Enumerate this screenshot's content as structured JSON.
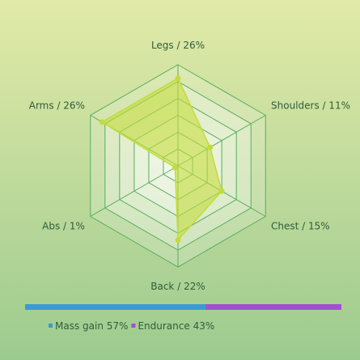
{
  "chart_data": [
    {
      "type": "radar",
      "categories": [
        "Legs",
        "Shoulders",
        "Chest",
        "Back",
        "Abs",
        "Arms"
      ],
      "values": [
        26,
        11,
        15,
        22,
        1,
        26
      ],
      "value_labels": [
        "26%",
        "11%",
        "15%",
        "22%",
        "1%",
        "26%"
      ],
      "color": "#c3dc3a",
      "rlim": [
        0,
        30
      ]
    },
    {
      "type": "stacked-bar",
      "series": [
        {
          "name": "Mass gain",
          "color": "#3a9ad6",
          "values": [
            57
          ],
          "value_labels": [
            "57%"
          ]
        },
        {
          "name": "Endurance",
          "color": "#a24fd1",
          "values": [
            43
          ],
          "value_labels": [
            "43%"
          ]
        }
      ],
      "xlim": [
        0,
        100
      ]
    }
  ]
}
